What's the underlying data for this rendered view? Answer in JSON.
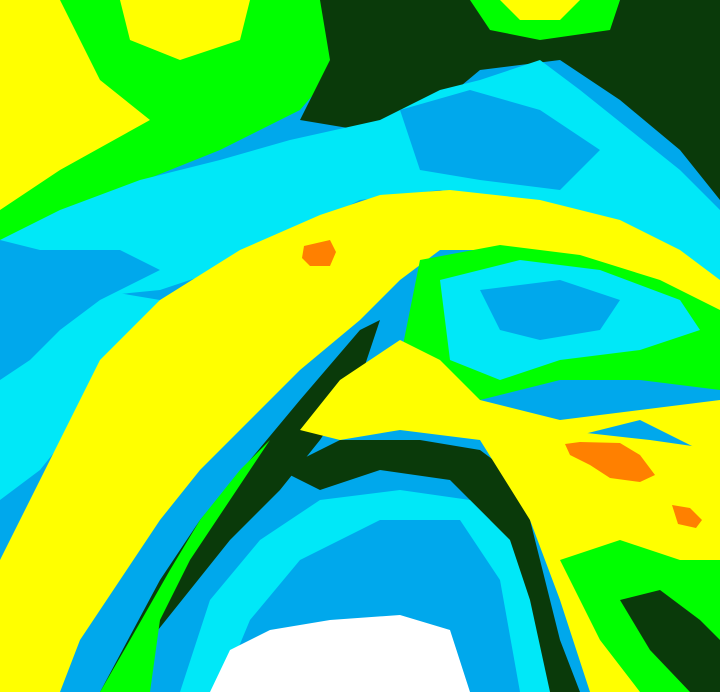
{
  "image": {
    "kind": "false-color classified raster",
    "colors": {
      "white": "#ffffff",
      "blue": "#00a8ec",
      "cyan": "#00e8f8",
      "dark_green": "#0a3a0a",
      "green": "#00ff00",
      "yellow": "#ffff00",
      "orange": "#ff8000"
    }
  }
}
